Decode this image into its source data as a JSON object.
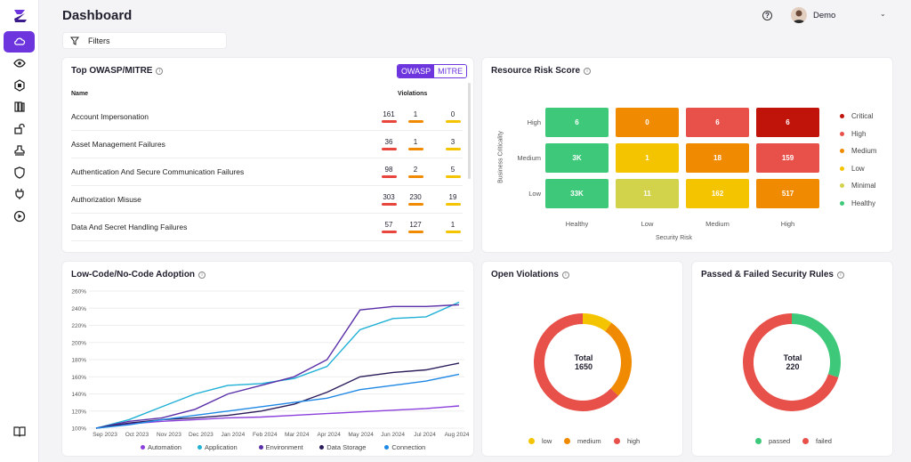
{
  "header": {
    "title": "Dashboard",
    "user_name": "Demo",
    "help": "?"
  },
  "filters": {
    "label": "Filters"
  },
  "sidebar": {
    "items": [
      "cloud-icon",
      "eye-icon",
      "ai-icon",
      "book-stack-icon",
      "lock-open-icon",
      "stamp-icon",
      "shield-icon",
      "plug-icon",
      "play-icon",
      "book-open-icon"
    ]
  },
  "owasp": {
    "title": "Top OWASP/MITRE",
    "tabs": [
      "OWASP",
      "MITRE"
    ],
    "col_name": "Name",
    "col_violations": "Violations",
    "rows": [
      {
        "name": "Account Impersonation",
        "v": [
          "161",
          "1",
          "0"
        ]
      },
      {
        "name": "Asset Management Failures",
        "v": [
          "36",
          "1",
          "3"
        ]
      },
      {
        "name": "Authentication And Secure Communication Failures",
        "v": [
          "98",
          "2",
          "5"
        ]
      },
      {
        "name": "Authorization Misuse",
        "v": [
          "303",
          "230",
          "19"
        ]
      },
      {
        "name": "Data And Secret Handling Failures",
        "v": [
          "57",
          "127",
          "1"
        ]
      }
    ],
    "bar_colors": [
      "#e8453c",
      "#f08a00",
      "#f5c400"
    ]
  },
  "risk": {
    "title": "Resource Risk Score",
    "y_title": "Business Criticality",
    "x_title": "Security Risk",
    "rows": [
      "High",
      "Medium",
      "Low"
    ],
    "cols": [
      "Healthy",
      "Low",
      "Medium",
      "High"
    ],
    "cells": [
      [
        "6",
        "0",
        "6",
        "6"
      ],
      [
        "3K",
        "1",
        "18",
        "159"
      ],
      [
        "33K",
        "11",
        "162",
        "517"
      ]
    ],
    "colors": [
      [
        "#3ec97a",
        "#f08a00",
        "#e8504a",
        "#c0130a"
      ],
      [
        "#3ec97a",
        "#f5c400",
        "#f08a00",
        "#e8504a"
      ],
      [
        "#3ec97a",
        "#d2d24b",
        "#f5c400",
        "#f08a00"
      ]
    ],
    "legend": [
      {
        "label": "Critical",
        "color": "#c0130a"
      },
      {
        "label": "High",
        "color": "#e8504a"
      },
      {
        "label": "Medium",
        "color": "#f08a00"
      },
      {
        "label": "Low",
        "color": "#f5c400"
      },
      {
        "label": "Minimal",
        "color": "#d2d24b"
      },
      {
        "label": "Healthy",
        "color": "#3ec97a"
      }
    ]
  },
  "adoption": {
    "title": "Low-Code/No-Code Adoption"
  },
  "chart_data": {
    "type": "line",
    "x": [
      "Sep 2023",
      "Oct 2023",
      "Nov 2023",
      "Dec 2023",
      "Jan 2024",
      "Feb 2024",
      "Mar 2024",
      "Apr 2024",
      "May 2024",
      "Jun 2024",
      "Jul 2024",
      "Aug 2024"
    ],
    "y_ticks": [
      "100%",
      "120%",
      "140%",
      "160%",
      "180%",
      "200%",
      "220%",
      "240%",
      "260%"
    ],
    "ylim": [
      100,
      260
    ],
    "series": [
      {
        "name": "Automation",
        "color": "#8b3fdc",
        "values": [
          100,
          105,
          108,
          110,
          112,
          113,
          115,
          117,
          119,
          121,
          123,
          126
        ]
      },
      {
        "name": "Application",
        "color": "#1fb0d6",
        "values": [
          100,
          110,
          125,
          140,
          150,
          152,
          158,
          172,
          215,
          228,
          230,
          247
        ]
      },
      {
        "name": "Environment",
        "color": "#5a2fa8",
        "values": [
          100,
          108,
          112,
          122,
          140,
          150,
          160,
          180,
          238,
          242,
          242,
          244
        ]
      },
      {
        "name": "Data Storage",
        "color": "#2b1b5a",
        "values": [
          100,
          106,
          110,
          112,
          115,
          120,
          128,
          142,
          160,
          165,
          168,
          176
        ]
      },
      {
        "name": "Connection",
        "color": "#1e88e5",
        "values": [
          100,
          104,
          110,
          115,
          120,
          125,
          130,
          135,
          145,
          150,
          155,
          163
        ]
      }
    ],
    "legend_position": "bottom"
  },
  "violations": {
    "title": "Open Violations",
    "total_label": "Total",
    "total": "1650",
    "legend": [
      {
        "label": "low",
        "color": "#f5c400"
      },
      {
        "label": "medium",
        "color": "#f08a00"
      },
      {
        "label": "high",
        "color": "#e8504a"
      }
    ],
    "values": [
      10,
      27,
      63
    ]
  },
  "rules": {
    "title": "Passed & Failed Security Rules",
    "total_label": "Total",
    "total": "220",
    "legend": [
      {
        "label": "passed",
        "color": "#3ec97a"
      },
      {
        "label": "failed",
        "color": "#e8504a"
      }
    ],
    "values": [
      30,
      70
    ]
  }
}
